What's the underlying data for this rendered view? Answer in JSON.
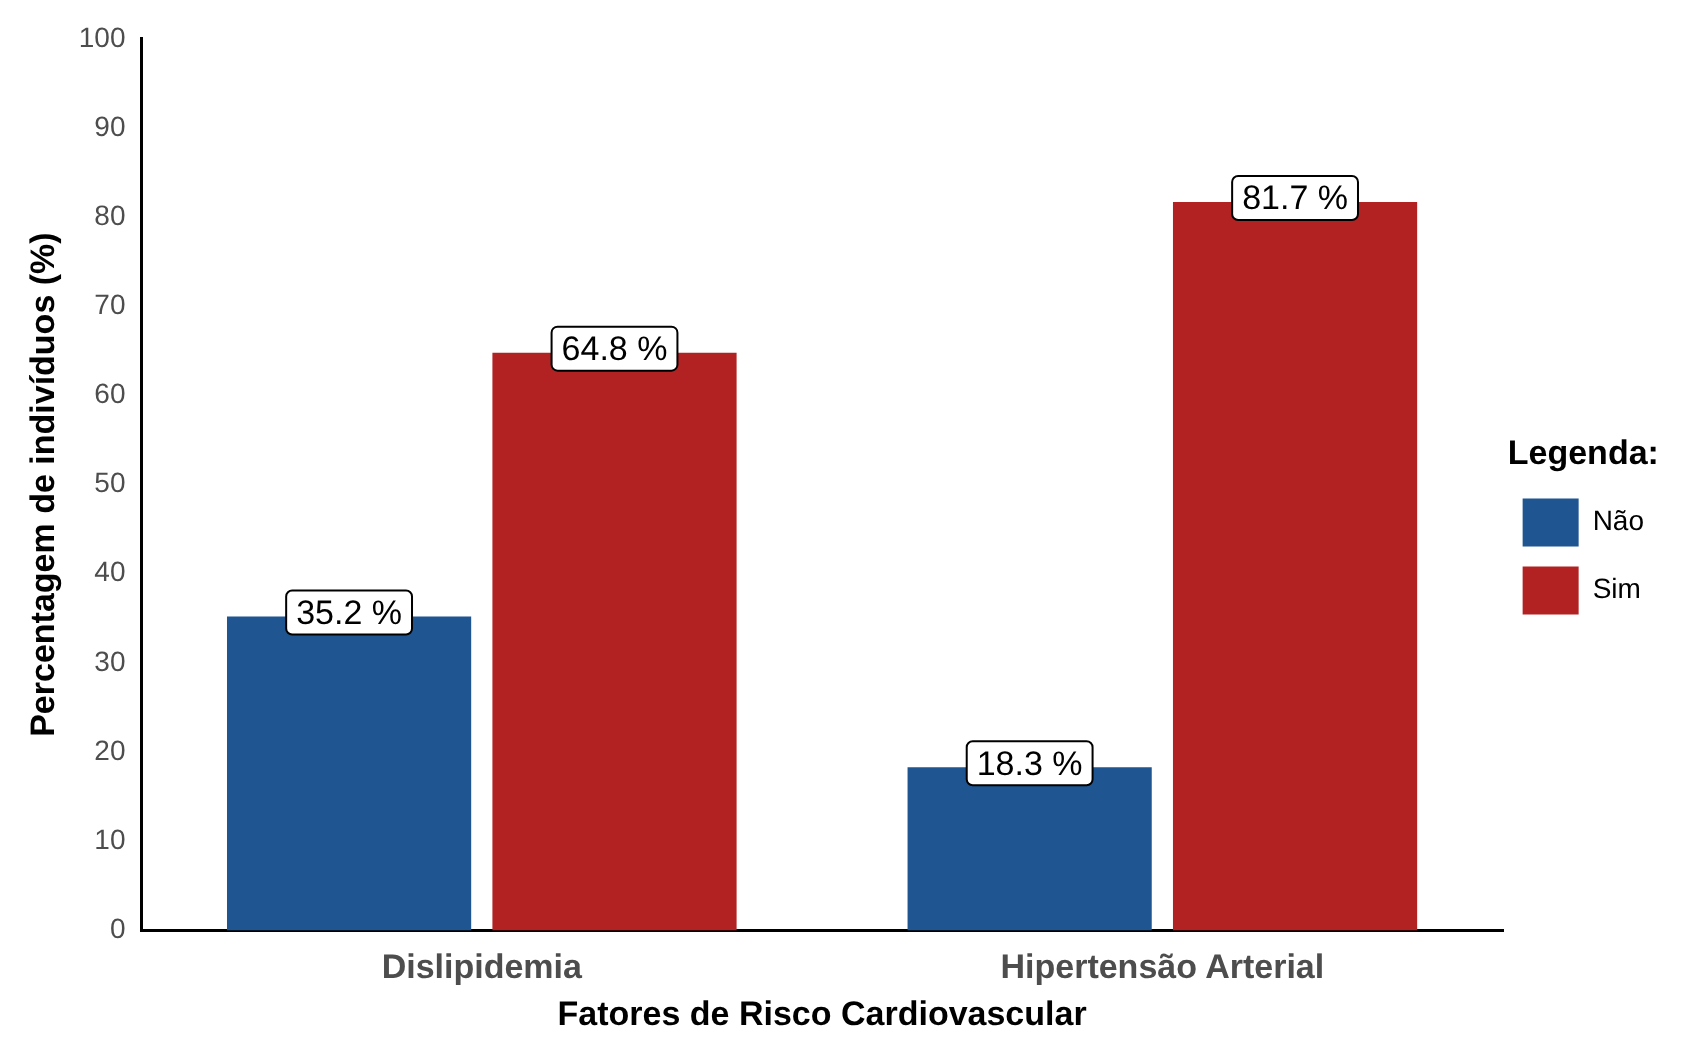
{
  "chart_data": {
    "type": "bar",
    "xlabel": "Fatores de Risco Cardiovascular",
    "ylabel": "Percentagem de indivíduos (%)",
    "legend_title": "Legenda:",
    "categories": [
      "Dislipidemia",
      "Hipertensão Arterial"
    ],
    "series": [
      {
        "name": "Não",
        "color": "#1f5591",
        "values": [
          35.2,
          18.3
        ],
        "value_labels": [
          "35.2 %",
          "18.3 %"
        ]
      },
      {
        "name": "Sim",
        "color": "#b22222",
        "values": [
          64.8,
          81.7
        ],
        "value_labels": [
          "64.8 %",
          "81.7 %"
        ]
      }
    ],
    "ylim": [
      0,
      100
    ],
    "yticks": [
      0,
      10,
      20,
      30,
      40,
      50,
      60,
      70,
      80,
      90,
      100
    ],
    "grid": false,
    "legend": "right"
  }
}
